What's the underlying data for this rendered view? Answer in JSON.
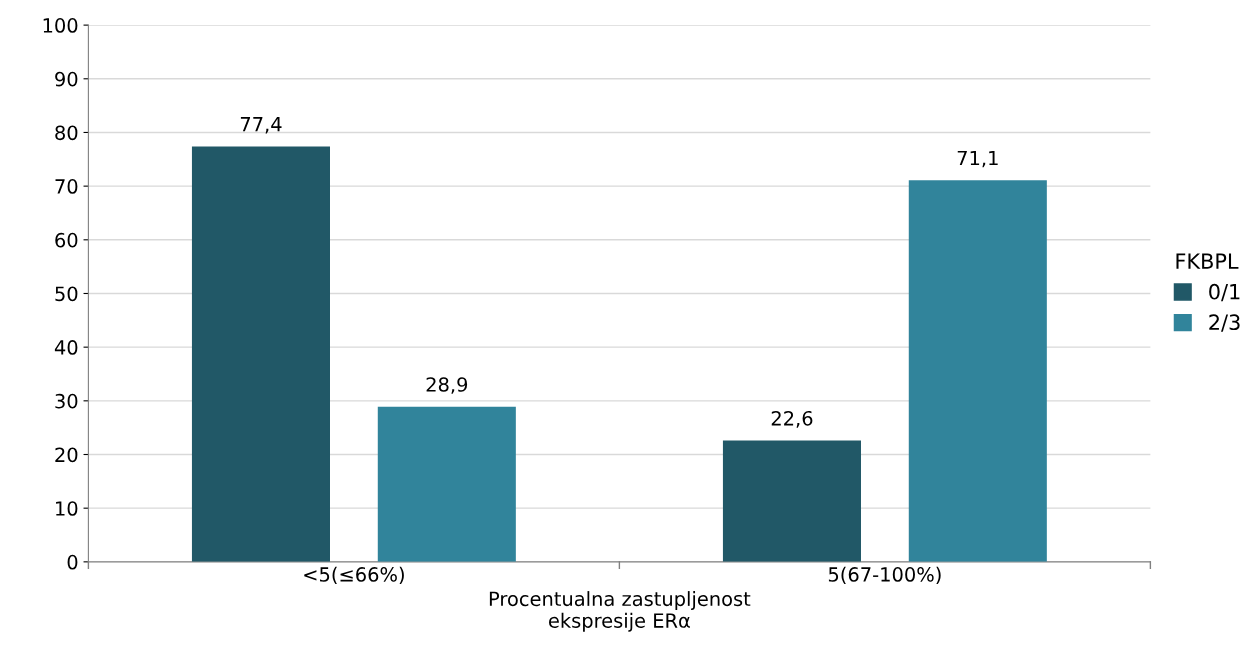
{
  "chart_data": {
    "type": "bar",
    "categories": [
      "<5(≤66%)",
      "5(67-100%)"
    ],
    "series": [
      {
        "name": "0/1",
        "color": "#215867",
        "values": [
          77.4,
          22.6
        ],
        "value_labels": [
          "77,4",
          "22,6"
        ]
      },
      {
        "name": "2/3",
        "color": "#31849b",
        "values": [
          28.9,
          71.1
        ],
        "value_labels": [
          "28,9",
          "71,1"
        ]
      }
    ],
    "xlabel": "Procentualna zastupljenost\nekspresije ERα",
    "legend_title": "FKBPL",
    "legend": "right",
    "ylim": [
      0,
      100
    ],
    "yticks": [
      0,
      10,
      20,
      30,
      40,
      50,
      60,
      70,
      80,
      90,
      100
    ],
    "grid": "y"
  }
}
